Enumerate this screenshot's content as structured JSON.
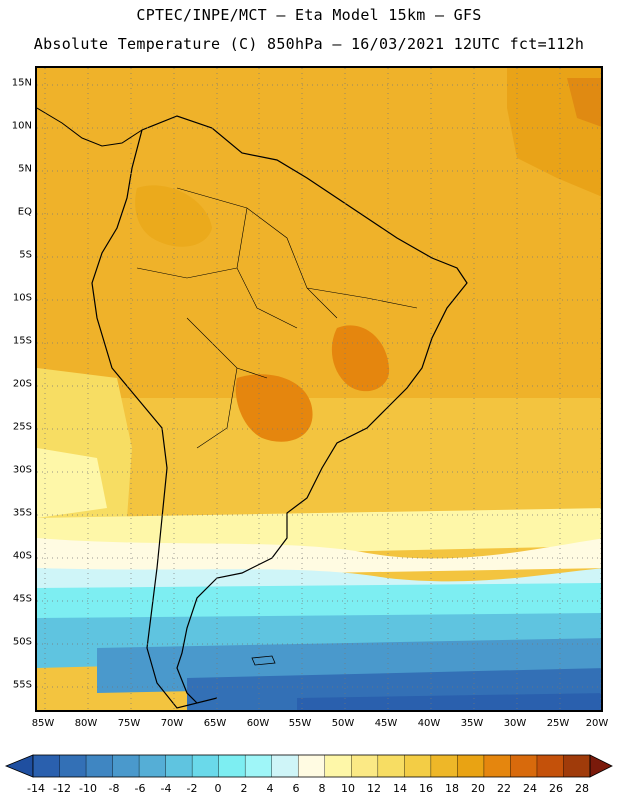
{
  "header": {
    "line1": "CPTEC/INPE/MCT –  Eta Model 15km – GFS",
    "line2": "Absolute Temperature (C) 850hPa – 16/03/2021 12UTC fct=112h"
  },
  "map": {
    "lat_labels": [
      "15N",
      "10N",
      "5N",
      "EQ",
      "5S",
      "10S",
      "15S",
      "20S",
      "25S",
      "30S",
      "35S",
      "40S",
      "45S",
      "50S",
      "55S"
    ],
    "lon_labels": [
      "85W",
      "80W",
      "75W",
      "70W",
      "65W",
      "60W",
      "55W",
      "50W",
      "45W",
      "40W",
      "35W",
      "30W",
      "25W",
      "20W"
    ]
  },
  "colorbar": {
    "labels": [
      "-14",
      "-12",
      "-10",
      "-8",
      "-6",
      "-4",
      "-2",
      "0",
      "2",
      "4",
      "6",
      "8",
      "10",
      "12",
      "14",
      "16",
      "18",
      "20",
      "22",
      "24",
      "26",
      "28"
    ],
    "colors": [
      "#1f4fa0",
      "#2a60ae",
      "#3370b6",
      "#3f86c2",
      "#4a99cc",
      "#55aed6",
      "#5fc4e0",
      "#6ad9ea",
      "#7deef2",
      "#9ff6f8",
      "#cff5f8",
      "#fffbe2",
      "#fef7a8",
      "#fbe985",
      "#f7dd63",
      "#f3cd45",
      "#eeb728",
      "#e9a313",
      "#e5860e",
      "#d86a0c",
      "#c4510a",
      "#a03b0a",
      "#7a1a0b"
    ]
  }
}
